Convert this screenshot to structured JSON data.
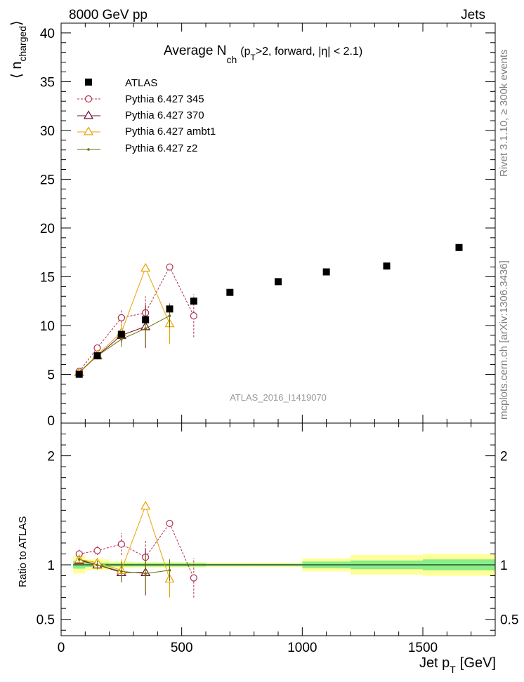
{
  "header": {
    "left": "8000 GeV pp",
    "right": "Jets"
  },
  "side_labels": {
    "rivet": "Rivet 3.1.10, ≥ 300k events",
    "mcplots": "mcplots.cern.ch [arXiv:1306.3436]"
  },
  "chart_data": {
    "type": "scatter",
    "title_main": "Average N",
    "title_sub": "ch",
    "title_rest_open": "(p",
    "title_rest_sub": "T",
    "title_rest_close": ">2, forward, |η| < 2.1)",
    "analysis_tag": "ATLAS_2016_I1419070",
    "xlabel_main": "Jet p",
    "xlabel_sub": "T",
    "xlabel_unit": "[GeV]",
    "ylabel_main": "⟨ n",
    "ylabel_sub": "charged",
    "ylabel_close": "⟩",
    "ratio_ylabel": "Ratio to ATLAS",
    "xlim": [
      0,
      1800
    ],
    "ylim": [
      0,
      41
    ],
    "ratio_ylim": [
      0.35,
      2.3
    ],
    "x_ticks": [
      0,
      500,
      1000,
      1500
    ],
    "x_tick_labels": [
      "0",
      "500",
      "1000",
      "1500"
    ],
    "y_ticks": [
      0,
      5,
      10,
      15,
      20,
      25,
      30,
      35,
      40
    ],
    "y_tick_labels": [
      "0",
      "5",
      "10",
      "15",
      "20",
      "25",
      "30",
      "35",
      "40"
    ],
    "ratio_ticks": [
      0.5,
      1,
      2
    ],
    "ratio_tick_labels": [
      "0.5",
      "1",
      "2"
    ],
    "legend": [
      "ATLAS",
      "Pythia 6.427 345",
      "Pythia 6.427 370",
      "Pythia 6.427 ambt1",
      "Pythia 6.427 z2"
    ],
    "data": {
      "name": "ATLAS",
      "color": "#000000",
      "x": [
        75,
        150,
        250,
        350,
        450,
        550,
        700,
        900,
        1100,
        1350,
        1650
      ],
      "xlo": [
        50,
        100,
        200,
        300,
        400,
        500,
        600,
        800,
        1000,
        1200,
        1500
      ],
      "xhi": [
        100,
        200,
        300,
        400,
        500,
        600,
        800,
        1000,
        1200,
        1500,
        1800
      ],
      "y": [
        5.0,
        6.9,
        9.1,
        10.6,
        11.7,
        12.5,
        13.4,
        14.5,
        15.5,
        16.1,
        18.0
      ],
      "band_inner": [
        0.035,
        0.02,
        0.015,
        0.015,
        0.015,
        0.015,
        0.01,
        0.01,
        0.03,
        0.04,
        0.05
      ],
      "band_outer": [
        0.08,
        0.05,
        0.03,
        0.025,
        0.025,
        0.025,
        0.02,
        0.02,
        0.06,
        0.09,
        0.1
      ]
    },
    "series": [
      {
        "name": "Pythia 6.427 345",
        "color": "#b02e4d",
        "marker": "circle",
        "dashed": true,
        "x": [
          75,
          150,
          250,
          350,
          450,
          550
        ],
        "y": [
          5.3,
          7.7,
          10.8,
          11.3,
          16.0,
          11.0
        ],
        "err": [
          0.2,
          0.3,
          0.9,
          1.7,
          0.0,
          2.2
        ],
        "ratio": [
          1.1,
          1.13,
          1.19,
          1.07,
          1.38,
          0.88
        ],
        "ratio_err": [
          0.04,
          0.04,
          0.1,
          0.16,
          0.0,
          0.18
        ]
      },
      {
        "name": "Pythia 6.427 370",
        "color": "#6b0f2d",
        "marker": "triangle",
        "dashed": false,
        "x": [
          75,
          150,
          250,
          350
        ],
        "y": [
          5.2,
          6.9,
          9.0,
          9.9
        ],
        "err": [
          0.15,
          0.3,
          0.8,
          2.2
        ],
        "ratio": [
          1.04,
          1.0,
          0.93,
          0.93
        ],
        "ratio_err": [
          0.03,
          0.04,
          0.09,
          0.21
        ]
      },
      {
        "name": "Pythia 6.427 ambt1",
        "color": "#e8a200",
        "marker": "triangle",
        "dashed": false,
        "x": [
          75,
          150,
          250,
          350,
          450
        ],
        "y": [
          5.2,
          7.0,
          9.3,
          15.9,
          10.2
        ],
        "err": [
          0.15,
          0.3,
          1.0,
          0.0,
          2.1
        ],
        "ratio": [
          1.05,
          1.02,
          0.95,
          1.54,
          0.87
        ],
        "ratio_err": [
          0.03,
          0.04,
          0.1,
          0.0,
          0.17
        ]
      },
      {
        "name": "Pythia 6.427 z2",
        "color": "#6b7000",
        "marker": "dot",
        "dashed": false,
        "x": [
          75,
          150,
          250,
          350,
          450
        ],
        "y": [
          5.2,
          6.9,
          8.6,
          9.7,
          11.0
        ],
        "err": [
          0.15,
          0.3,
          0.8,
          1.6,
          1.2
        ],
        "ratio": [
          1.05,
          1.0,
          0.94,
          0.92,
          0.95
        ],
        "ratio_err": [
          0.03,
          0.04,
          0.09,
          0.16,
          0.1
        ]
      }
    ]
  }
}
